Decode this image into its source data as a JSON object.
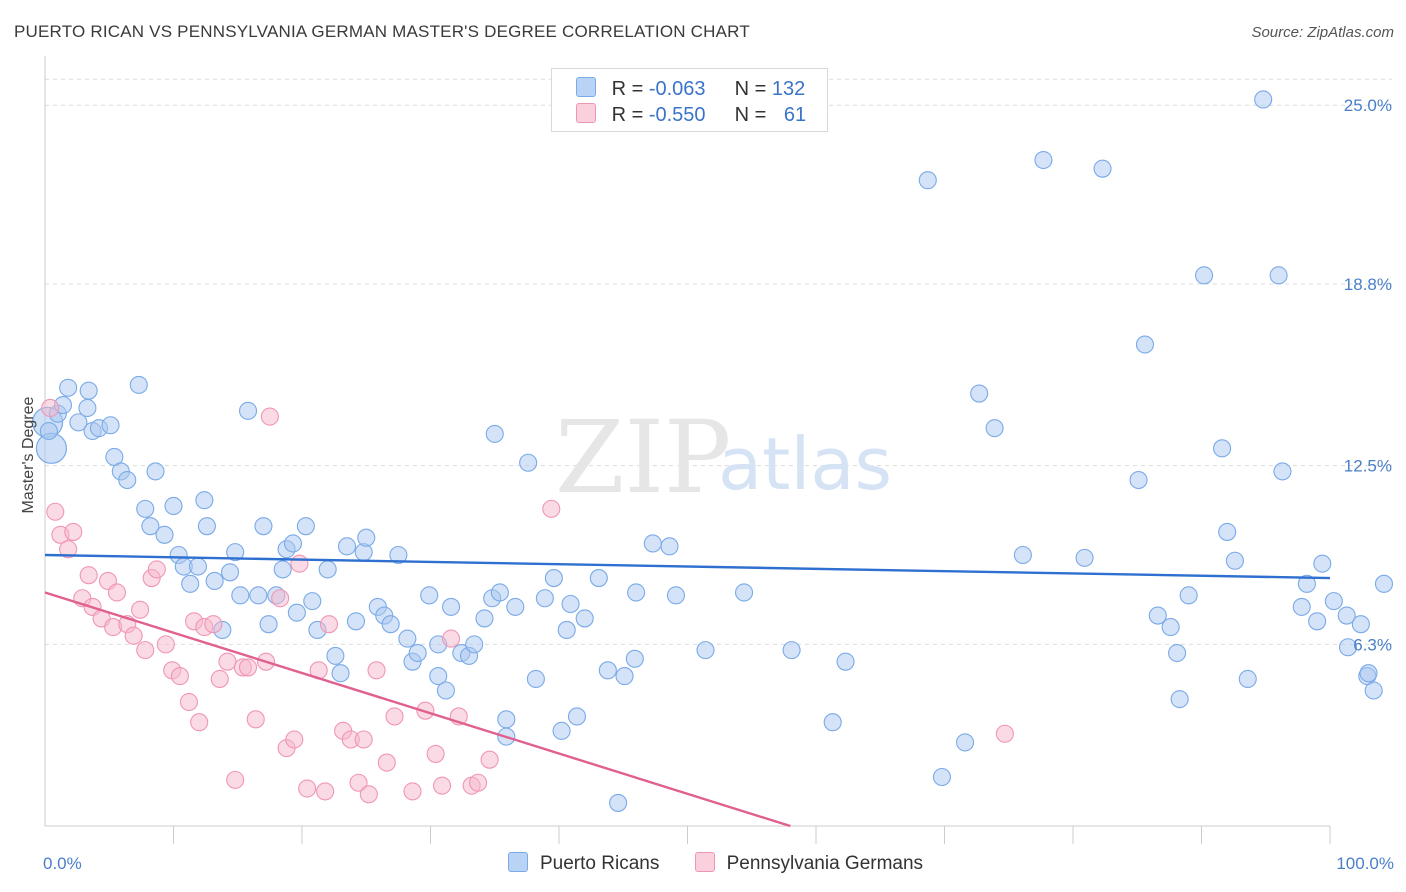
{
  "title": "PUERTO RICAN VS PENNSYLVANIA GERMAN MASTER'S DEGREE CORRELATION CHART",
  "source": "Source: ZipAtlas.com",
  "watermark": {
    "zip": "ZIP",
    "atlas": "atlas"
  },
  "legend": {
    "rows": [
      {
        "r_label": "R = ",
        "r_value": "-0.063",
        "n_label": "N = ",
        "n_value": "132",
        "color": "#a9c8f0"
      },
      {
        "r_label": "R = ",
        "r_value": "-0.550",
        "n_label": "N = ",
        "n_value": "61",
        "color": "#f6b8cb"
      }
    ]
  },
  "bottom_legend": [
    "Puerto Ricans",
    "Pennsylvania Germans"
  ],
  "chart_data": {
    "type": "scatter",
    "ylabel": "Master's Degree",
    "xlim": [
      0,
      100
    ],
    "ylim": [
      0,
      26.5
    ],
    "y_ticks": [
      {
        "value": 6.3,
        "label": "6.3%"
      },
      {
        "value": 12.5,
        "label": "12.5%"
      },
      {
        "value": 18.8,
        "label": "18.8%"
      },
      {
        "value": 25.0,
        "label": "25.0%"
      }
    ],
    "x_tick_labels": [
      {
        "value": 0,
        "label": "0.0%"
      },
      {
        "value": 100,
        "label": "100.0%"
      }
    ],
    "grid": true,
    "series": [
      {
        "name": "Puerto Ricans",
        "color": "#7aaae8",
        "fill": "#a9c8f0",
        "trend": {
          "x": [
            0,
            100
          ],
          "y": [
            9.4,
            8.6
          ],
          "color": "#2e6fd0"
        },
        "points": [
          [
            0.3,
            13.7
          ],
          [
            1.0,
            14.3
          ],
          [
            1.4,
            14.6
          ],
          [
            1.8,
            15.2
          ],
          [
            2.6,
            14.0
          ],
          [
            3.3,
            14.5
          ],
          [
            3.4,
            15.1
          ],
          [
            3.7,
            13.7
          ],
          [
            4.2,
            13.8
          ],
          [
            5.1,
            13.9
          ],
          [
            5.4,
            12.8
          ],
          [
            5.9,
            12.3
          ],
          [
            6.4,
            12.0
          ],
          [
            7.3,
            15.3
          ],
          [
            7.8,
            11.0
          ],
          [
            8.2,
            10.4
          ],
          [
            8.6,
            12.3
          ],
          [
            9.3,
            10.1
          ],
          [
            10.0,
            11.1
          ],
          [
            10.4,
            9.4
          ],
          [
            10.8,
            9.0
          ],
          [
            11.3,
            8.4
          ],
          [
            11.9,
            9.0
          ],
          [
            12.4,
            11.3
          ],
          [
            12.6,
            10.4
          ],
          [
            13.2,
            8.5
          ],
          [
            13.8,
            6.8
          ],
          [
            14.4,
            8.8
          ],
          [
            14.8,
            9.5
          ],
          [
            15.2,
            8.0
          ],
          [
            15.8,
            14.4
          ],
          [
            16.6,
            8.0
          ],
          [
            17.0,
            10.4
          ],
          [
            17.4,
            7.0
          ],
          [
            18.0,
            8.0
          ],
          [
            18.5,
            8.9
          ],
          [
            18.8,
            9.6
          ],
          [
            19.3,
            9.8
          ],
          [
            19.6,
            7.4
          ],
          [
            20.3,
            10.4
          ],
          [
            20.8,
            7.8
          ],
          [
            21.2,
            6.8
          ],
          [
            22.0,
            8.9
          ],
          [
            22.6,
            5.9
          ],
          [
            23.0,
            5.3
          ],
          [
            23.5,
            9.7
          ],
          [
            24.2,
            7.1
          ],
          [
            24.8,
            9.5
          ],
          [
            25.0,
            10.0
          ],
          [
            25.9,
            7.6
          ],
          [
            26.4,
            7.3
          ],
          [
            26.9,
            7.0
          ],
          [
            27.5,
            9.4
          ],
          [
            28.2,
            6.5
          ],
          [
            28.6,
            5.7
          ],
          [
            29.0,
            6.0
          ],
          [
            29.9,
            8.0
          ],
          [
            30.6,
            5.2
          ],
          [
            30.6,
            6.3
          ],
          [
            31.2,
            4.7
          ],
          [
            31.6,
            7.6
          ],
          [
            32.4,
            6.0
          ],
          [
            33.0,
            5.9
          ],
          [
            33.4,
            6.3
          ],
          [
            34.2,
            7.2
          ],
          [
            34.8,
            7.9
          ],
          [
            35.0,
            13.6
          ],
          [
            35.4,
            8.1
          ],
          [
            35.9,
            3.7
          ],
          [
            35.9,
            3.1
          ],
          [
            36.6,
            7.6
          ],
          [
            37.6,
            12.6
          ],
          [
            38.2,
            5.1
          ],
          [
            38.9,
            7.9
          ],
          [
            39.6,
            8.6
          ],
          [
            40.2,
            3.3
          ],
          [
            40.6,
            6.8
          ],
          [
            40.9,
            7.7
          ],
          [
            41.4,
            3.8
          ],
          [
            42.0,
            7.2
          ],
          [
            43.1,
            8.6
          ],
          [
            43.8,
            5.4
          ],
          [
            44.6,
            0.8
          ],
          [
            45.1,
            5.2
          ],
          [
            45.9,
            5.8
          ],
          [
            46.0,
            8.1
          ],
          [
            47.3,
            9.8
          ],
          [
            48.6,
            9.7
          ],
          [
            49.1,
            8.0
          ],
          [
            51.4,
            6.1
          ],
          [
            54.4,
            8.1
          ],
          [
            58.1,
            6.1
          ],
          [
            61.3,
            3.6
          ],
          [
            62.3,
            5.7
          ],
          [
            68.7,
            22.4
          ],
          [
            69.8,
            1.7
          ],
          [
            71.6,
            2.9
          ],
          [
            72.7,
            15.0
          ],
          [
            73.9,
            13.8
          ],
          [
            76.1,
            9.4
          ],
          [
            77.7,
            23.1
          ],
          [
            80.9,
            9.3
          ],
          [
            82.3,
            22.8
          ],
          [
            85.1,
            12.0
          ],
          [
            85.6,
            16.7
          ],
          [
            86.6,
            7.3
          ],
          [
            87.6,
            6.9
          ],
          [
            88.1,
            6.0
          ],
          [
            88.3,
            4.4
          ],
          [
            89.0,
            8.0
          ],
          [
            90.2,
            19.1
          ],
          [
            91.6,
            13.1
          ],
          [
            92.0,
            10.2
          ],
          [
            92.6,
            9.2
          ],
          [
            93.6,
            5.1
          ],
          [
            94.8,
            25.2
          ],
          [
            96.0,
            19.1
          ],
          [
            96.3,
            12.3
          ],
          [
            97.8,
            7.6
          ],
          [
            98.2,
            8.4
          ],
          [
            99.0,
            7.1
          ],
          [
            99.4,
            9.1
          ],
          [
            100.3,
            7.8
          ],
          [
            101.3,
            7.3
          ],
          [
            101.4,
            6.2
          ],
          [
            102.4,
            7.0
          ],
          [
            102.9,
            5.2
          ],
          [
            103.0,
            5.3
          ],
          [
            103.4,
            4.7
          ],
          [
            104.2,
            8.4
          ]
        ],
        "large_points": [
          [
            0.2,
            14.0
          ],
          [
            0.5,
            13.1
          ]
        ]
      },
      {
        "name": "Pennsylvania Germans",
        "color": "#f096b4",
        "fill": "#f6b8cb",
        "trend": {
          "x": [
            0,
            58
          ],
          "y": [
            8.1,
            0
          ],
          "color": "#e0608f"
        },
        "points": [
          [
            0.8,
            10.9
          ],
          [
            1.2,
            10.1
          ],
          [
            1.8,
            9.6
          ],
          [
            2.2,
            10.2
          ],
          [
            2.9,
            7.9
          ],
          [
            3.4,
            8.7
          ],
          [
            3.7,
            7.6
          ],
          [
            4.4,
            7.2
          ],
          [
            4.9,
            8.5
          ],
          [
            5.3,
            6.9
          ],
          [
            5.6,
            8.1
          ],
          [
            6.4,
            7.0
          ],
          [
            6.9,
            6.6
          ],
          [
            7.4,
            7.5
          ],
          [
            7.8,
            6.1
          ],
          [
            8.3,
            8.6
          ],
          [
            8.7,
            8.9
          ],
          [
            9.4,
            6.3
          ],
          [
            9.9,
            5.4
          ],
          [
            10.5,
            5.2
          ],
          [
            11.2,
            4.3
          ],
          [
            11.6,
            7.1
          ],
          [
            12.0,
            3.6
          ],
          [
            12.4,
            6.9
          ],
          [
            13.1,
            7.0
          ],
          [
            13.6,
            5.1
          ],
          [
            14.2,
            5.7
          ],
          [
            14.8,
            1.6
          ],
          [
            15.4,
            5.5
          ],
          [
            15.8,
            5.5
          ],
          [
            16.4,
            3.7
          ],
          [
            17.2,
            5.7
          ],
          [
            17.5,
            14.2
          ],
          [
            18.3,
            7.9
          ],
          [
            18.8,
            2.7
          ],
          [
            19.4,
            3.0
          ],
          [
            19.8,
            9.1
          ],
          [
            20.4,
            1.3
          ],
          [
            21.3,
            5.4
          ],
          [
            21.8,
            1.2
          ],
          [
            22.1,
            7.0
          ],
          [
            23.2,
            3.3
          ],
          [
            23.8,
            3.0
          ],
          [
            24.4,
            1.5
          ],
          [
            24.8,
            3.0
          ],
          [
            25.2,
            1.1
          ],
          [
            25.8,
            5.4
          ],
          [
            26.6,
            2.2
          ],
          [
            27.2,
            3.8
          ],
          [
            28.6,
            1.2
          ],
          [
            29.6,
            4.0
          ],
          [
            30.4,
            2.5
          ],
          [
            30.9,
            1.4
          ],
          [
            31.6,
            6.5
          ],
          [
            32.2,
            3.8
          ],
          [
            33.2,
            1.4
          ],
          [
            33.7,
            1.5
          ],
          [
            34.6,
            2.3
          ],
          [
            39.4,
            11.0
          ],
          [
            74.7,
            3.2
          ],
          [
            0.4,
            14.5
          ]
        ]
      }
    ]
  }
}
